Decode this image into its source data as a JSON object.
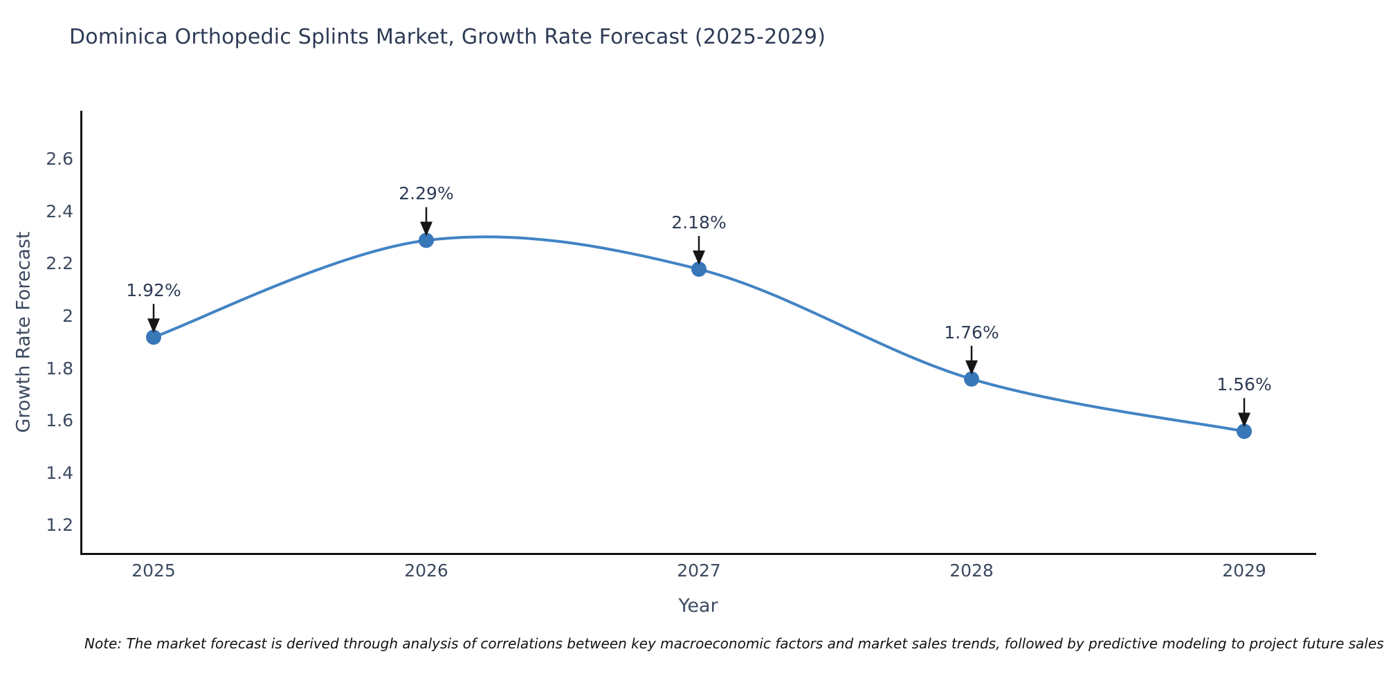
{
  "chart_data": {
    "type": "line",
    "title": "Dominica Orthopedic Splints Market, Growth Rate Forecast (2025-2029)",
    "xlabel": "Year",
    "ylabel": "Growth Rate Forecast",
    "x": [
      2025,
      2026,
      2027,
      2028,
      2029
    ],
    "y": [
      1.92,
      2.29,
      2.18,
      1.76,
      1.56
    ],
    "point_labels": [
      "1.92%",
      "2.29%",
      "2.18%",
      "1.76%",
      "1.56%"
    ],
    "x_tick_labels": [
      "2025",
      "2026",
      "2027",
      "2028",
      "2029"
    ],
    "y_tick_labels": [
      "2.6",
      "2.4",
      "2.2",
      "2",
      "1.8",
      "1.6",
      "1.4",
      "1.2"
    ],
    "y_tick_values": [
      2.6,
      2.4,
      2.2,
      2.0,
      1.8,
      1.6,
      1.4,
      1.2
    ],
    "ylim_approx": [
      1.09,
      2.79
    ],
    "line_shape": "spline",
    "grid": false,
    "legend_position": "none",
    "annotation_style": "down-arrow",
    "colors": {
      "line": "#4283c4",
      "marker": "#3877b8",
      "arrow": "#161616",
      "title_text": "#2e3b55",
      "axis_text": "#3c4a60",
      "axis_line": "#111111",
      "note_text": "#111111"
    },
    "note": "Note: The market forecast is derived through analysis of correlations between key macroeconomic factors and market sales trends, followed by predictive modeling to project future sales"
  }
}
